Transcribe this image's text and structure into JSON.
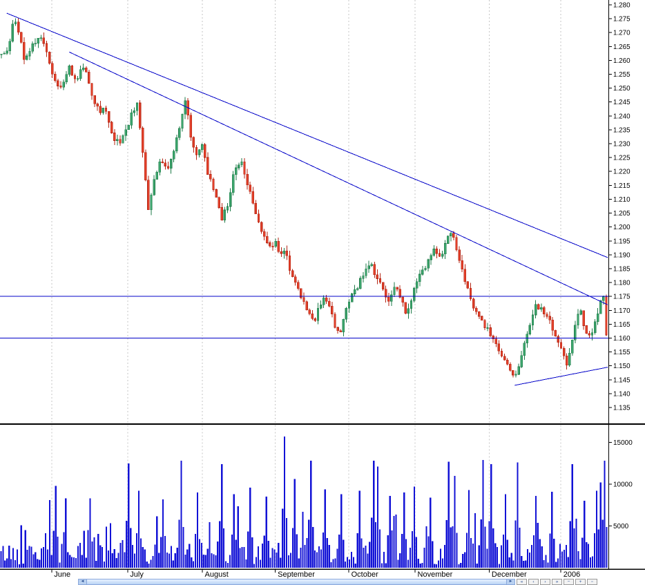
{
  "chart_data": {
    "type": "candlestick+volume",
    "x_axis": {
      "tick_labels": [
        "June",
        "July",
        "August",
        "September",
        "October",
        "November",
        "December",
        "2006"
      ],
      "tick_positions": [
        0.085,
        0.21,
        0.333,
        0.453,
        0.574,
        0.683,
        0.805,
        0.923
      ],
      "grid": "vertical-dashed"
    },
    "price_axis": {
      "side": "right",
      "min": 1.135,
      "max": 1.28,
      "step": 0.005,
      "tick_labels": [
        "1.280",
        "1.275",
        "1.270",
        "1.265",
        "1.260",
        "1.255",
        "1.250",
        "1.245",
        "1.240",
        "1.235",
        "1.230",
        "1.225",
        "1.220",
        "1.215",
        "1.210",
        "1.205",
        "1.200",
        "1.195",
        "1.190",
        "1.185",
        "1.180",
        "1.175",
        "1.170",
        "1.165",
        "1.160",
        "1.155",
        "1.150",
        "1.145",
        "1.140",
        "1.135"
      ]
    },
    "volume_axis": {
      "tick_values": [
        5000,
        10000,
        15000
      ],
      "tick_labels": [
        "5000",
        "10000",
        "15000"
      ],
      "max_visible": 15700
    },
    "series": {
      "candle_count": 215,
      "price_close_path": [
        [
          0.006,
          1.2625
        ],
        [
          0.014,
          1.265
        ],
        [
          0.023,
          1.2765
        ],
        [
          0.032,
          1.269
        ],
        [
          0.041,
          1.259
        ],
        [
          0.052,
          1.2645
        ],
        [
          0.066,
          1.27
        ],
        [
          0.077,
          1.2625
        ],
        [
          0.085,
          1.2545
        ],
        [
          0.1,
          1.2495
        ],
        [
          0.114,
          1.257
        ],
        [
          0.127,
          1.253
        ],
        [
          0.139,
          1.2585
        ],
        [
          0.152,
          1.2455
        ],
        [
          0.164,
          1.2415
        ],
        [
          0.173,
          1.244
        ],
        [
          0.184,
          1.233
        ],
        [
          0.195,
          1.23
        ],
        [
          0.205,
          1.233
        ],
        [
          0.216,
          1.24
        ],
        [
          0.225,
          1.245
        ],
        [
          0.234,
          1.23
        ],
        [
          0.241,
          1.212
        ],
        [
          0.245,
          1.206
        ],
        [
          0.255,
          1.218
        ],
        [
          0.264,
          1.224
        ],
        [
          0.275,
          1.22
        ],
        [
          0.286,
          1.228
        ],
        [
          0.298,
          1.238
        ],
        [
          0.305,
          1.2455
        ],
        [
          0.314,
          1.233
        ],
        [
          0.323,
          1.225
        ],
        [
          0.333,
          1.229
        ],
        [
          0.343,
          1.218
        ],
        [
          0.355,
          1.212
        ],
        [
          0.364,
          1.203
        ],
        [
          0.375,
          1.208
        ],
        [
          0.386,
          1.221
        ],
        [
          0.398,
          1.224
        ],
        [
          0.407,
          1.215
        ],
        [
          0.416,
          1.209
        ],
        [
          0.425,
          1.203
        ],
        [
          0.434,
          1.196
        ],
        [
          0.443,
          1.192
        ],
        [
          0.452,
          1.195
        ],
        [
          0.461,
          1.189
        ],
        [
          0.47,
          1.192
        ],
        [
          0.48,
          1.182
        ],
        [
          0.489,
          1.178
        ],
        [
          0.498,
          1.173
        ],
        [
          0.507,
          1.169
        ],
        [
          0.516,
          1.165
        ],
        [
          0.525,
          1.171
        ],
        [
          0.534,
          1.175
        ],
        [
          0.543,
          1.171
        ],
        [
          0.552,
          1.164
        ],
        [
          0.559,
          1.16
        ],
        [
          0.568,
          1.17
        ],
        [
          0.577,
          1.174
        ],
        [
          0.589,
          1.179
        ],
        [
          0.6,
          1.184
        ],
        [
          0.611,
          1.186
        ],
        [
          0.623,
          1.181
        ],
        [
          0.632,
          1.176
        ],
        [
          0.641,
          1.172
        ],
        [
          0.65,
          1.179
        ],
        [
          0.659,
          1.175
        ],
        [
          0.668,
          1.169
        ],
        [
          0.677,
          1.174
        ],
        [
          0.686,
          1.181
        ],
        [
          0.698,
          1.185
        ],
        [
          0.707,
          1.188
        ],
        [
          0.716,
          1.192
        ],
        [
          0.725,
          1.189
        ],
        [
          0.734,
          1.196
        ],
        [
          0.741,
          1.199
        ],
        [
          0.75,
          1.193
        ],
        [
          0.759,
          1.186
        ],
        [
          0.768,
          1.179
        ],
        [
          0.777,
          1.172
        ],
        [
          0.786,
          1.169
        ],
        [
          0.795,
          1.165
        ],
        [
          0.805,
          1.162
        ],
        [
          0.811,
          1.159
        ],
        [
          0.82,
          1.156
        ],
        [
          0.83,
          1.1525
        ],
        [
          0.839,
          1.149
        ],
        [
          0.847,
          1.1445
        ],
        [
          0.855,
          1.152
        ],
        [
          0.864,
          1.159
        ],
        [
          0.873,
          1.165
        ],
        [
          0.882,
          1.172
        ],
        [
          0.891,
          1.17
        ],
        [
          0.9,
          1.167
        ],
        [
          0.909,
          1.164
        ],
        [
          0.918,
          1.159
        ],
        [
          0.927,
          1.153
        ],
        [
          0.934,
          1.15
        ],
        [
          0.941,
          1.159
        ],
        [
          0.948,
          1.167
        ],
        [
          0.955,
          1.17
        ],
        [
          0.961,
          1.165
        ],
        [
          0.968,
          1.161
        ],
        [
          0.975,
          1.163
        ],
        [
          0.982,
          1.168
        ],
        [
          0.989,
          1.175
        ],
        [
          0.992,
          1.18
        ],
        [
          0.995,
          1.168
        ],
        [
          0.999,
          1.157
        ]
      ]
    },
    "volume": {
      "bar_count": 300,
      "typical_range": [
        400,
        8800
      ],
      "lull_ranges": [
        [
          0.896,
          0.918
        ]
      ],
      "spikes": [
        [
          0.091,
          9800
        ],
        [
          0.148,
          8300
        ],
        [
          0.21,
          12500
        ],
        [
          0.227,
          9200
        ],
        [
          0.267,
          8200
        ],
        [
          0.298,
          12800
        ],
        [
          0.324,
          9000
        ],
        [
          0.364,
          12400
        ],
        [
          0.386,
          8800
        ],
        [
          0.413,
          9600
        ],
        [
          0.4375,
          8500
        ],
        [
          0.468,
          15700
        ],
        [
          0.486,
          10600
        ],
        [
          0.511,
          12800
        ],
        [
          0.534,
          9400
        ],
        [
          0.563,
          8800
        ],
        [
          0.591,
          9200
        ],
        [
          0.614,
          12800
        ],
        [
          0.623,
          12100
        ],
        [
          0.642,
          8600
        ],
        [
          0.665,
          9000
        ],
        [
          0.682,
          9700
        ],
        [
          0.707,
          8400
        ],
        [
          0.739,
          12700
        ],
        [
          0.748,
          11000
        ],
        [
          0.77,
          9300
        ],
        [
          0.795,
          12900
        ],
        [
          0.809,
          12400
        ],
        [
          0.833,
          8800
        ],
        [
          0.852,
          12600
        ],
        [
          0.881,
          8600
        ],
        [
          0.909,
          9100
        ],
        [
          0.941,
          12400
        ],
        [
          0.96,
          8000
        ],
        [
          0.98,
          9200
        ],
        [
          0.989,
          10200
        ],
        [
          0.995,
          12800
        ]
      ]
    },
    "overlays": {
      "trendlines": [
        {
          "name": "descending-channel-upper",
          "from_t": 0.011,
          "from_price": 1.277,
          "to_t": 1.0,
          "to_price": 1.189
        },
        {
          "name": "descending-channel-lower",
          "from_t": 0.114,
          "from_price": 1.263,
          "to_t": 1.0,
          "to_price": 1.172
        },
        {
          "name": "rising-support",
          "from_t": 0.847,
          "from_price": 1.143,
          "to_t": 1.0,
          "to_price": 1.1495
        }
      ],
      "horizontal_levels": [
        1.175,
        1.16
      ]
    },
    "colors": {
      "up": "#3da56d",
      "up_stroke": "#1d7a47",
      "down": "#e2402a",
      "down_stroke": "#b32413",
      "volume": "#1212d6",
      "trendline": "#0000c8",
      "grid": "#c6c6c6",
      "axis_line": "#000000",
      "axis_text": "#000000"
    }
  },
  "bottom_bar": {
    "scrollbar": {
      "left_glyph": "◄",
      "right_glyph": "►"
    },
    "icons": [
      "«",
      "‹",
      "›",
      "»",
      "−",
      "+",
      "▫"
    ]
  }
}
